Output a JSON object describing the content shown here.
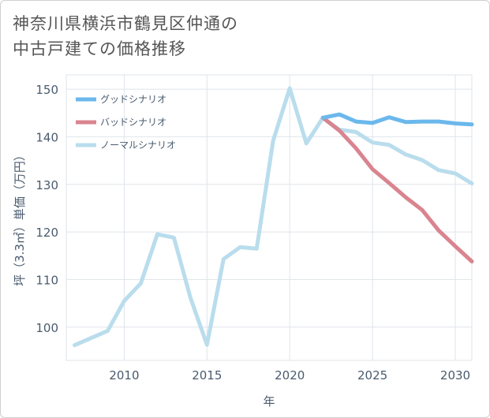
{
  "title_lines": [
    "神奈川県横浜市鶴見区仲通の",
    "中古戸建ての価格推移"
  ],
  "chart_data": {
    "type": "line",
    "title": "神奈川県横浜市鶴見区仲通の中古戸建ての価格推移",
    "xlabel": "年",
    "ylabel": "坪（3.3㎡）単価（万円）",
    "xlim": [
      2006.5,
      2031
    ],
    "ylim": [
      93,
      153
    ],
    "xticks": [
      2010,
      2015,
      2020,
      2025,
      2030
    ],
    "yticks": [
      100,
      110,
      120,
      130,
      140,
      150
    ],
    "grid": true,
    "legend_position": "top-left",
    "series": [
      {
        "name": "グッドシナリオ",
        "color": "#6bb8ec",
        "points": [
          [
            2022,
            144
          ],
          [
            2023,
            144.7
          ],
          [
            2024,
            143.2
          ],
          [
            2025,
            142.9
          ],
          [
            2026,
            144.1
          ],
          [
            2027,
            143.1
          ],
          [
            2028,
            143.2
          ],
          [
            2029,
            143.2
          ],
          [
            2030,
            142.8
          ],
          [
            2031,
            142.6
          ]
        ]
      },
      {
        "name": "バッドシナリオ",
        "color": "#d9848f",
        "points": [
          [
            2022,
            144
          ],
          [
            2023,
            141.3
          ],
          [
            2024,
            137.6
          ],
          [
            2025,
            133.2
          ],
          [
            2026,
            130.3
          ],
          [
            2027,
            127.3
          ],
          [
            2028,
            124.6
          ],
          [
            2029,
            120.3
          ],
          [
            2030,
            117.0
          ],
          [
            2031,
            113.8
          ]
        ]
      },
      {
        "name": "ノーマルシナリオ",
        "color": "#b9ddec",
        "points": [
          [
            2007,
            96.2
          ],
          [
            2008,
            97.7
          ],
          [
            2009,
            99.2
          ],
          [
            2010,
            105.5
          ],
          [
            2011,
            109.2
          ],
          [
            2012,
            119.5
          ],
          [
            2013,
            118.8
          ],
          [
            2014,
            106.2
          ],
          [
            2015,
            96.3
          ],
          [
            2016,
            114.3
          ],
          [
            2017,
            116.8
          ],
          [
            2018,
            116.5
          ],
          [
            2019,
            139.2
          ],
          [
            2020,
            150.2
          ],
          [
            2021,
            138.6
          ],
          [
            2022,
            144
          ],
          [
            2023,
            141.5
          ],
          [
            2024,
            141.0
          ],
          [
            2025,
            138.8
          ],
          [
            2026,
            138.3
          ],
          [
            2027,
            136.3
          ],
          [
            2028,
            135.1
          ],
          [
            2029,
            133.0
          ],
          [
            2030,
            132.3
          ],
          [
            2031,
            130.2
          ]
        ]
      }
    ]
  }
}
